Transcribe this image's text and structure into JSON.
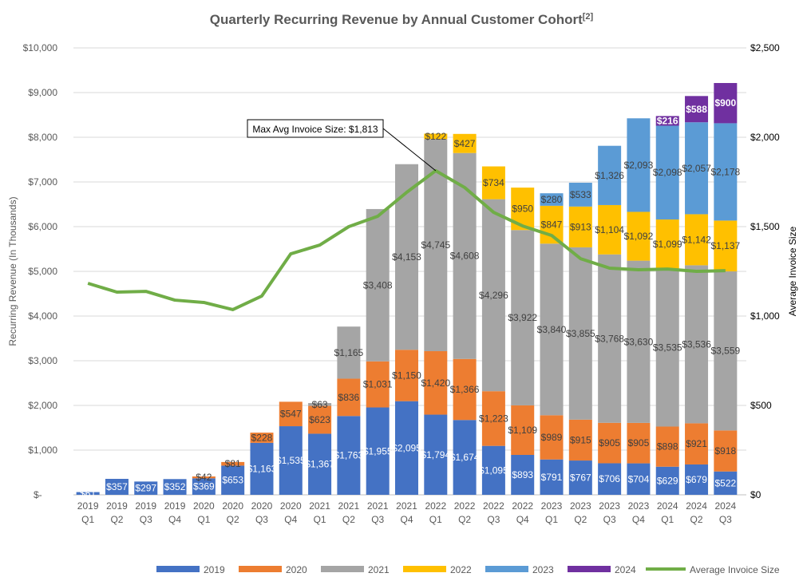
{
  "chart_data": {
    "type": "bar",
    "title": "Quarterly Recurring Revenue by Annual Customer Cohort",
    "title_superscript": "[2]",
    "ylabel": "Recurring Revenue (In Thousands)",
    "y2label": "Average Invoice Size",
    "ylim": [
      0,
      10000
    ],
    "y2lim": [
      0,
      2500
    ],
    "yticks": [
      "$-",
      "$1,000",
      "$2,000",
      "$3,000",
      "$4,000",
      "$5,000",
      "$6,000",
      "$7,000",
      "$8,000",
      "$9,000",
      "$10,000"
    ],
    "y2ticks": [
      "$0",
      "$500",
      "$1,000",
      "$1,500",
      "$2,000",
      "$2,500"
    ],
    "grid": true,
    "legend_position": "bottom",
    "categories": [
      [
        "2019",
        "Q1"
      ],
      [
        "2019",
        "Q2"
      ],
      [
        "2019",
        "Q3"
      ],
      [
        "2019",
        "Q4"
      ],
      [
        "2020",
        "Q1"
      ],
      [
        "2020",
        "Q2"
      ],
      [
        "2020",
        "Q3"
      ],
      [
        "2020",
        "Q4"
      ],
      [
        "2021",
        "Q1"
      ],
      [
        "2021",
        "Q2"
      ],
      [
        "2021",
        "Q3"
      ],
      [
        "2021",
        "Q4"
      ],
      [
        "2022",
        "Q1"
      ],
      [
        "2022",
        "Q2"
      ],
      [
        "2022",
        "Q3"
      ],
      [
        "2022",
        "Q4"
      ],
      [
        "2023",
        "Q1"
      ],
      [
        "2023",
        "Q2"
      ],
      [
        "2023",
        "Q3"
      ],
      [
        "2023",
        "Q4"
      ],
      [
        "2024",
        "Q1"
      ],
      [
        "2024",
        "Q2"
      ],
      [
        "2024",
        "Q3"
      ]
    ],
    "series": [
      {
        "name": "2019",
        "color": "#4472C4",
        "values": [
          61,
          357,
          297,
          352,
          369,
          653,
          1163,
          1535,
          1367,
          1763,
          1955,
          2095,
          1794,
          1674,
          1095,
          893,
          791,
          767,
          706,
          704,
          629,
          679,
          522
        ]
      },
      {
        "name": "2020",
        "color": "#ED7D31",
        "values": [
          0,
          0,
          0,
          0,
          42,
          81,
          228,
          547,
          623,
          836,
          1031,
          1150,
          1420,
          1366,
          1223,
          1109,
          989,
          915,
          905,
          905,
          898,
          921,
          918
        ]
      },
      {
        "name": "2021",
        "color": "#A5A5A5",
        "values": [
          0,
          0,
          0,
          0,
          0,
          0,
          0,
          0,
          63,
          1165,
          3408,
          4153,
          4745,
          4608,
          4296,
          3922,
          3840,
          3855,
          3768,
          3630,
          3535,
          3536,
          3559
        ]
      },
      {
        "name": "2022",
        "color": "#FFC000",
        "values": [
          0,
          0,
          0,
          0,
          0,
          0,
          0,
          0,
          0,
          0,
          0,
          0,
          122,
          427,
          734,
          950,
          847,
          913,
          1104,
          1092,
          1099,
          1142,
          1137
        ]
      },
      {
        "name": "2023",
        "color": "#5B9BD5",
        "values": [
          0,
          0,
          0,
          0,
          0,
          0,
          0,
          0,
          0,
          0,
          0,
          0,
          0,
          0,
          0,
          0,
          280,
          533,
          1326,
          2093,
          2098,
          2057,
          2178
        ]
      },
      {
        "name": "2024",
        "color": "#7030A0",
        "values": [
          0,
          0,
          0,
          0,
          0,
          0,
          0,
          0,
          0,
          0,
          0,
          0,
          0,
          0,
          0,
          0,
          0,
          0,
          0,
          0,
          216,
          588,
          900
        ]
      }
    ],
    "line": {
      "name": "Average Invoice Size",
      "color": "#70AD47",
      "axis": "right",
      "values": [
        1183,
        1134,
        1138,
        1089,
        1076,
        1036,
        1112,
        1348,
        1397,
        1500,
        1558,
        1692,
        1813,
        1719,
        1580,
        1504,
        1451,
        1321,
        1268,
        1259,
        1263,
        1250,
        1254
      ]
    },
    "annotation": "Max Avg Invoice Size: $1,813"
  }
}
